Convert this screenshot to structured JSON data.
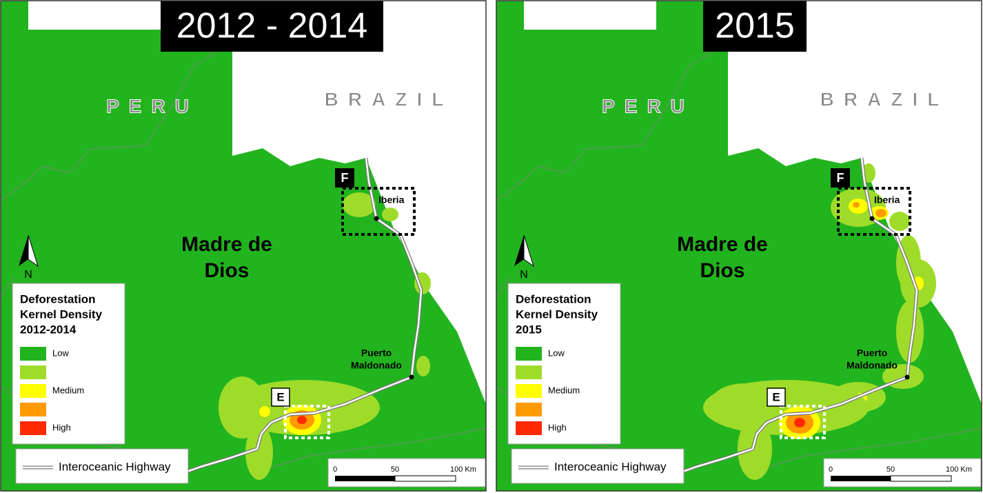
{
  "panels": [
    {
      "title": "2012 - 2014",
      "countries": [
        "PERU",
        "BRAZIL"
      ],
      "region": [
        "Madre de",
        "Dios"
      ],
      "towns": [
        [
          "Iberia"
        ],
        [
          "Puerto",
          "Maldonado"
        ]
      ],
      "boxes": [
        "F",
        "E"
      ],
      "north": "N",
      "legend": {
        "title": [
          "Deforestation",
          "Kernel Density",
          "2012-2014"
        ],
        "items": [
          {
            "label": "Low",
            "color": "#22b41e"
          },
          {
            "label": null,
            "color": "#9fdc2a"
          },
          {
            "label": "Medium",
            "color": "#ffff00"
          },
          {
            "label": null,
            "color": "#ff9a00"
          },
          {
            "label": "High",
            "color": "#ff2a00"
          }
        ]
      },
      "road_legend": "Interoceanic Highway",
      "scale": [
        "0",
        "50",
        "100 Km"
      ]
    },
    {
      "title": "2015",
      "countries": [
        "PERU",
        "BRAZIL"
      ],
      "region": [
        "Madre de",
        "Dios"
      ],
      "towns": [
        [
          "Iberia"
        ],
        [
          "Puerto",
          "Maldonado"
        ]
      ],
      "boxes": [
        "F",
        "E"
      ],
      "north": "N",
      "legend": {
        "title": [
          "Deforestation",
          "Kernel Density",
          "2015"
        ],
        "items": [
          {
            "label": "Low",
            "color": "#22b41e"
          },
          {
            "label": null,
            "color": "#9fdc2a"
          },
          {
            "label": "Medium",
            "color": "#ffff00"
          },
          {
            "label": null,
            "color": "#ff9a00"
          },
          {
            "label": "High",
            "color": "#ff2a00"
          }
        ]
      },
      "road_legend": "Interoceanic Highway",
      "scale": [
        "0",
        "50",
        "100 Km"
      ]
    }
  ]
}
